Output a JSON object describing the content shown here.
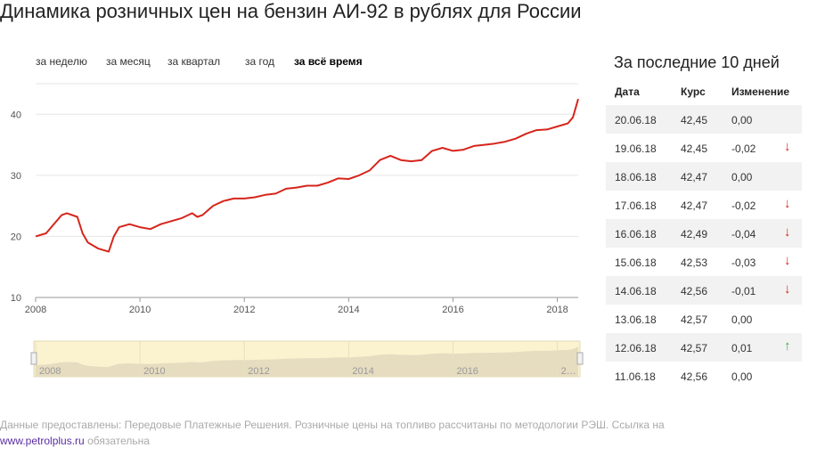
{
  "title": "Динамика розничных цен на бензин АИ-92 в рублях для России",
  "periods": [
    {
      "label": "за неделю",
      "active": false
    },
    {
      "label": "за месяц",
      "active": false
    },
    {
      "label": "за квартал",
      "active": false
    },
    {
      "label": "за год",
      "active": false
    },
    {
      "label": "за всё время",
      "active": true
    }
  ],
  "chart_data": {
    "type": "line",
    "title": "",
    "xlabel": "",
    "ylabel": "",
    "xlim": [
      2008,
      2018.4
    ],
    "ylim": [
      10,
      45
    ],
    "x_ticks": [
      "2008",
      "2010",
      "2012",
      "2014",
      "2016",
      "2018"
    ],
    "y_ticks": [
      "10",
      "20",
      "30",
      "40"
    ],
    "grid": true,
    "line_color": "#d6251c",
    "series": [
      {
        "x": [
          2008.0,
          2008.2,
          2008.5,
          2008.6,
          2008.8,
          2008.9,
          2009.0,
          2009.2,
          2009.4,
          2009.5,
          2009.6,
          2009.8,
          2010.0,
          2010.2,
          2010.4,
          2010.6,
          2010.8,
          2011.0,
          2011.1,
          2011.2,
          2011.4,
          2011.6,
          2011.8,
          2012.0,
          2012.2,
          2012.4,
          2012.6,
          2012.8,
          2013.0,
          2013.2,
          2013.4,
          2013.6,
          2013.8,
          2014.0,
          2014.2,
          2014.4,
          2014.6,
          2014.8,
          2015.0,
          2015.2,
          2015.4,
          2015.6,
          2015.8,
          2016.0,
          2016.2,
          2016.4,
          2016.6,
          2016.8,
          2017.0,
          2017.2,
          2017.4,
          2017.6,
          2017.8,
          2018.0,
          2018.2,
          2018.3,
          2018.4
        ],
        "y": [
          20.0,
          20.5,
          23.5,
          23.8,
          23.2,
          20.5,
          19.0,
          18.0,
          17.5,
          20.0,
          21.5,
          22.0,
          21.5,
          21.2,
          22.0,
          22.5,
          23.0,
          23.8,
          23.2,
          23.5,
          25.0,
          25.8,
          26.2,
          26.2,
          26.4,
          26.8,
          27.0,
          27.8,
          28.0,
          28.3,
          28.3,
          28.8,
          29.5,
          29.4,
          30.0,
          30.8,
          32.5,
          33.2,
          32.5,
          32.3,
          32.5,
          34.0,
          34.5,
          34.0,
          34.2,
          34.8,
          35.0,
          35.2,
          35.5,
          36.0,
          36.8,
          37.4,
          37.5,
          38.0,
          38.5,
          39.5,
          42.5
        ]
      }
    ]
  },
  "navigator": {
    "labels": [
      "2008",
      "2010",
      "2012",
      "2014",
      "2016",
      "2…"
    ]
  },
  "side": {
    "title": "За последние 10 дней",
    "headers": {
      "date": "Дата",
      "rate": "Курс",
      "change": "Изменение"
    },
    "rows": [
      {
        "date": "20.06.18",
        "rate": "42,45",
        "change": "0,00",
        "arrow": ""
      },
      {
        "date": "19.06.18",
        "rate": "42,45",
        "change": "-0,02",
        "arrow": "↓"
      },
      {
        "date": "18.06.18",
        "rate": "42,47",
        "change": "0,00",
        "arrow": ""
      },
      {
        "date": "17.06.18",
        "rate": "42,47",
        "change": "-0,02",
        "arrow": "↓"
      },
      {
        "date": "16.06.18",
        "rate": "42,49",
        "change": "-0,04",
        "arrow": "↓"
      },
      {
        "date": "15.06.18",
        "rate": "42,53",
        "change": "-0,03",
        "arrow": "↓"
      },
      {
        "date": "14.06.18",
        "rate": "42,56",
        "change": "-0,01",
        "arrow": "↓"
      },
      {
        "date": "13.06.18",
        "rate": "42,57",
        "change": "0,00",
        "arrow": ""
      },
      {
        "date": "12.06.18",
        "rate": "42,57",
        "change": "0,01",
        "arrow": "↑"
      },
      {
        "date": "11.06.18",
        "rate": "42,56",
        "change": "0,00",
        "arrow": ""
      }
    ]
  },
  "footer": {
    "text": "Данные предоставлены: Передовые Платежные Решения. Розничные цены на топливо рассчитаны по методологии РЭШ. Ссылка на",
    "link": "www.petrolplus.ru",
    "tail": "обязательна"
  }
}
